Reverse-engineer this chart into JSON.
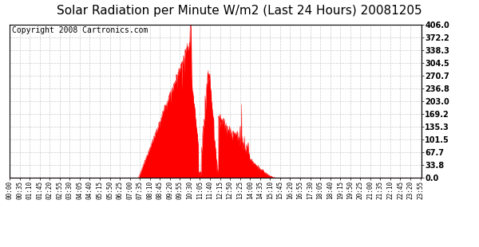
{
  "title": "Solar Radiation per Minute W/m2 (Last 24 Hours) 20081205",
  "copyright_text": "Copyright 2008 Cartronics.com",
  "y_ticks": [
    0.0,
    33.8,
    67.7,
    101.5,
    135.3,
    169.2,
    203.0,
    236.8,
    270.7,
    304.5,
    338.3,
    372.2,
    406.0
  ],
  "y_min": 0.0,
  "y_max": 406.0,
  "fill_color": "#FF0000",
  "line_color": "#FF0000",
  "bg_color": "#FFFFFF",
  "grid_color": "#AAAAAA",
  "dashed_line_color": "#FF0000",
  "title_fontsize": 11,
  "copyright_fontsize": 7,
  "tick_interval_minutes": 35,
  "total_minutes": 1440,
  "sunrise_minute": 450,
  "sunset_minute": 930
}
